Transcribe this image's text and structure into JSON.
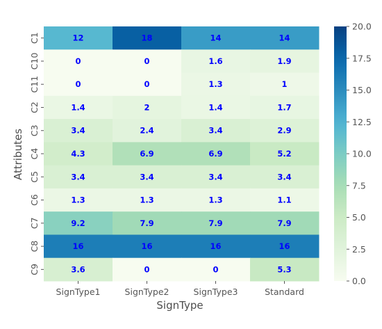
{
  "chart_data": {
    "type": "heatmap",
    "xlabel": "SignType",
    "ylabel": "Attributes",
    "columns": [
      "SignType1",
      "SignType2",
      "SignType3",
      "Standard"
    ],
    "rows": [
      "C1",
      "C10",
      "C11",
      "C2",
      "C3",
      "C4",
      "C5",
      "C6",
      "C7",
      "C8",
      "C9"
    ],
    "values": [
      [
        12,
        18,
        14,
        14
      ],
      [
        0,
        0,
        1.6,
        1.9
      ],
      [
        0,
        0,
        1.3,
        1
      ],
      [
        1.4,
        2,
        1.4,
        1.7
      ],
      [
        3.4,
        2.4,
        3.4,
        2.9
      ],
      [
        4.3,
        6.9,
        6.9,
        5.2
      ],
      [
        3.4,
        3.4,
        3.4,
        3.4
      ],
      [
        1.3,
        1.3,
        1.3,
        1.1
      ],
      [
        9.2,
        7.9,
        7.9,
        7.9
      ],
      [
        16,
        16,
        16,
        16
      ],
      [
        3.6,
        0,
        0,
        5.3
      ]
    ],
    "colorbar": {
      "colormap": "GnBu",
      "range": [
        0,
        20
      ],
      "ticks": [
        "0.0",
        "2.5",
        "5.0",
        "7.5",
        "10.0",
        "12.5",
        "15.0",
        "17.5",
        "20.0"
      ]
    },
    "annotation_color": "#0000ff"
  }
}
